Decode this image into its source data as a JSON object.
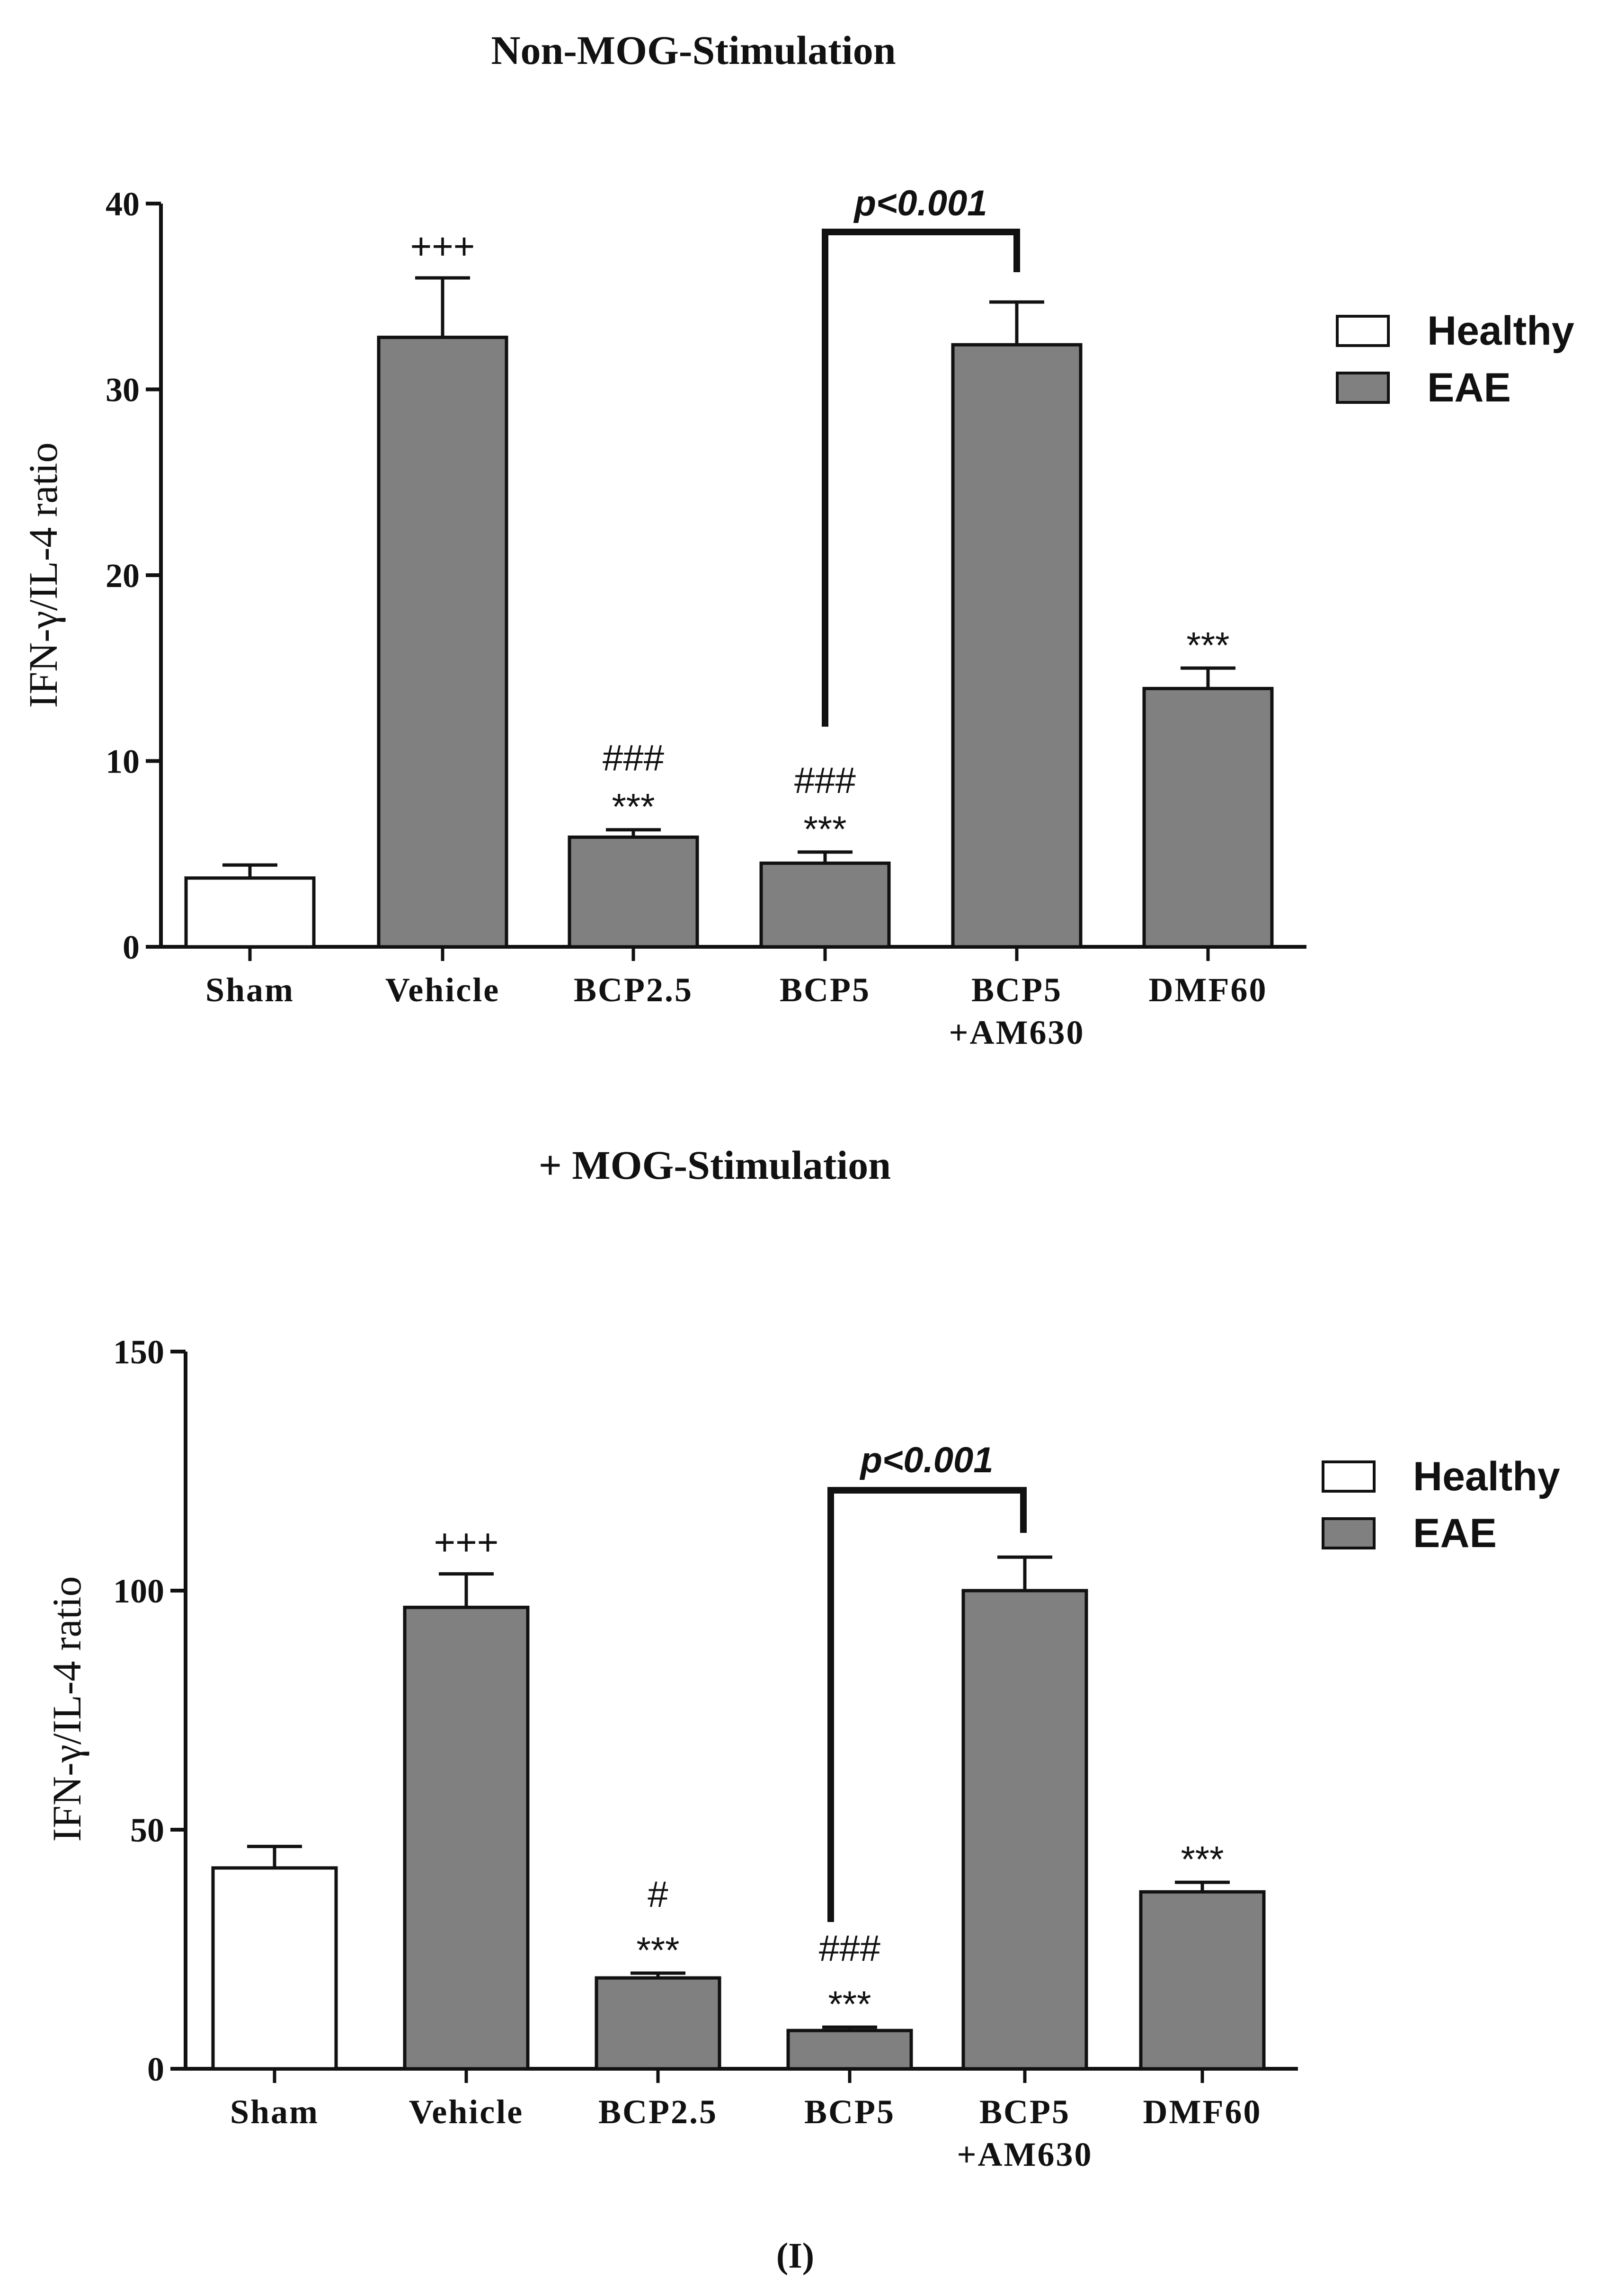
{
  "figure": {
    "panel_label": "(I)"
  },
  "chart_data": [
    {
      "type": "bar",
      "title": "Non-MOG-Stimulation",
      "xlabel": "",
      "ylabel": "IFN-γ/IL-4 ratio",
      "ylim": [
        0,
        40
      ],
      "yticks": [
        0,
        10,
        20,
        30,
        40
      ],
      "categories": [
        [
          "Sham"
        ],
        [
          "Vehicle"
        ],
        [
          "BCP2.5"
        ],
        [
          "BCP5"
        ],
        [
          "BCP5",
          "+AM630"
        ],
        [
          "DMF60"
        ]
      ],
      "values": [
        3.7,
        32.8,
        5.9,
        4.5,
        32.4,
        13.9
      ],
      "errors": [
        0.7,
        3.2,
        0.4,
        0.6,
        2.3,
        1.1
      ],
      "groups": [
        "Healthy",
        "EAE",
        "EAE",
        "EAE",
        "EAE",
        "EAE"
      ],
      "annotations": [
        [],
        [
          "+++"
        ],
        [
          "***",
          "###"
        ],
        [
          "***",
          "###"
        ],
        [],
        [
          "***"
        ]
      ],
      "bracket": {
        "from": 3,
        "to": 4,
        "text": "p<0.001"
      },
      "legend": [
        {
          "name": "Healthy",
          "color": "#ffffff"
        },
        {
          "name": "EAE",
          "color": "#808080"
        }
      ]
    },
    {
      "type": "bar",
      "title": "+ MOG-Stimulation",
      "xlabel": "",
      "ylabel": "IFN-γ/IL-4 ratio",
      "ylim": [
        0,
        150
      ],
      "yticks": [
        0,
        50,
        100,
        150
      ],
      "categories": [
        [
          "Sham"
        ],
        [
          "Vehicle"
        ],
        [
          "BCP2.5"
        ],
        [
          "BCP5"
        ],
        [
          "BCP5",
          "+AM630"
        ],
        [
          "DMF60"
        ]
      ],
      "values": [
        42,
        96.5,
        19,
        8,
        100,
        37
      ],
      "errors": [
        4.5,
        7,
        1,
        0.7,
        7,
        2
      ],
      "groups": [
        "Healthy",
        "EAE",
        "EAE",
        "EAE",
        "EAE",
        "EAE"
      ],
      "annotations": [
        [],
        [
          "+++"
        ],
        [
          "***",
          "#"
        ],
        [
          "***",
          "###"
        ],
        [],
        [
          "***"
        ]
      ],
      "bracket": {
        "from": 3,
        "to": 4,
        "text": "p<0.001"
      },
      "legend": [
        {
          "name": "Healthy",
          "color": "#ffffff"
        },
        {
          "name": "EAE",
          "color": "#808080"
        }
      ]
    }
  ]
}
